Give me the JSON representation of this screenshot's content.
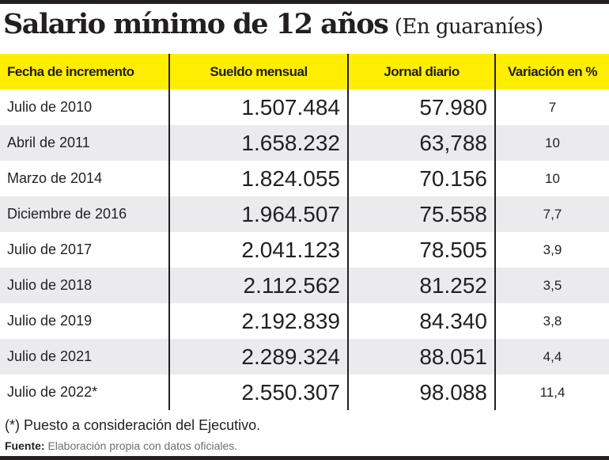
{
  "title": {
    "main": "Salario mínimo de 12 años",
    "sub": "(En guaraníes)"
  },
  "colors": {
    "header_bg": "#ffee00",
    "alt_row_bg": "#ebebed",
    "text": "#231f20"
  },
  "chart_data": {
    "type": "table",
    "title": "Salario mínimo de 12 años (En guaraníes)",
    "columns": [
      "Fecha de incremento",
      "Sueldo mensual",
      "Jornal diario",
      "Variación en %"
    ],
    "rows": [
      [
        "Julio de 2010",
        "1.507.484",
        "57.980",
        "7"
      ],
      [
        "Abril de 2011",
        "1.658.232",
        "63,788",
        "10"
      ],
      [
        "Marzo de 2014",
        "1.824.055",
        "70.156",
        "10"
      ],
      [
        "Diciembre de 2016",
        "1.964.507",
        "75.558",
        "7,7"
      ],
      [
        "Julio de 2017",
        "2.041.123",
        "78.505",
        "3,9"
      ],
      [
        "Julio de 2018",
        "2.112.562",
        "81.252",
        "3,5"
      ],
      [
        "Julio de 2019",
        "2.192.839",
        "84.340",
        "3,8"
      ],
      [
        "Julio de 2021",
        "2.289.324",
        "88.051",
        "4,4"
      ],
      [
        "Julio de 2022*",
        "2.550.307",
        "98.088",
        "11,4"
      ]
    ],
    "series": [
      {
        "name": "Sueldo mensual",
        "values": [
          1507484,
          1658232,
          1824055,
          1964507,
          2041123,
          2112562,
          2192839,
          2289324,
          2550307
        ]
      },
      {
        "name": "Jornal diario",
        "values": [
          57980,
          63788,
          70156,
          75558,
          78505,
          81252,
          84340,
          88051,
          98088
        ]
      },
      {
        "name": "Variación en %",
        "values": [
          7,
          10,
          10,
          7.7,
          3.9,
          3.5,
          3.8,
          4.4,
          11.4
        ]
      }
    ],
    "categories": [
      "Julio de 2010",
      "Abril de 2011",
      "Marzo de 2014",
      "Diciembre de 2016",
      "Julio de 2017",
      "Julio de 2018",
      "Julio de 2019",
      "Julio de 2021",
      "Julio de 2022*"
    ]
  },
  "footer": {
    "note": "(*) Puesto a consideración del Ejecutivo.",
    "source_label": "Fuente:",
    "source_text": " Elaboración propia con datos oficiales."
  }
}
